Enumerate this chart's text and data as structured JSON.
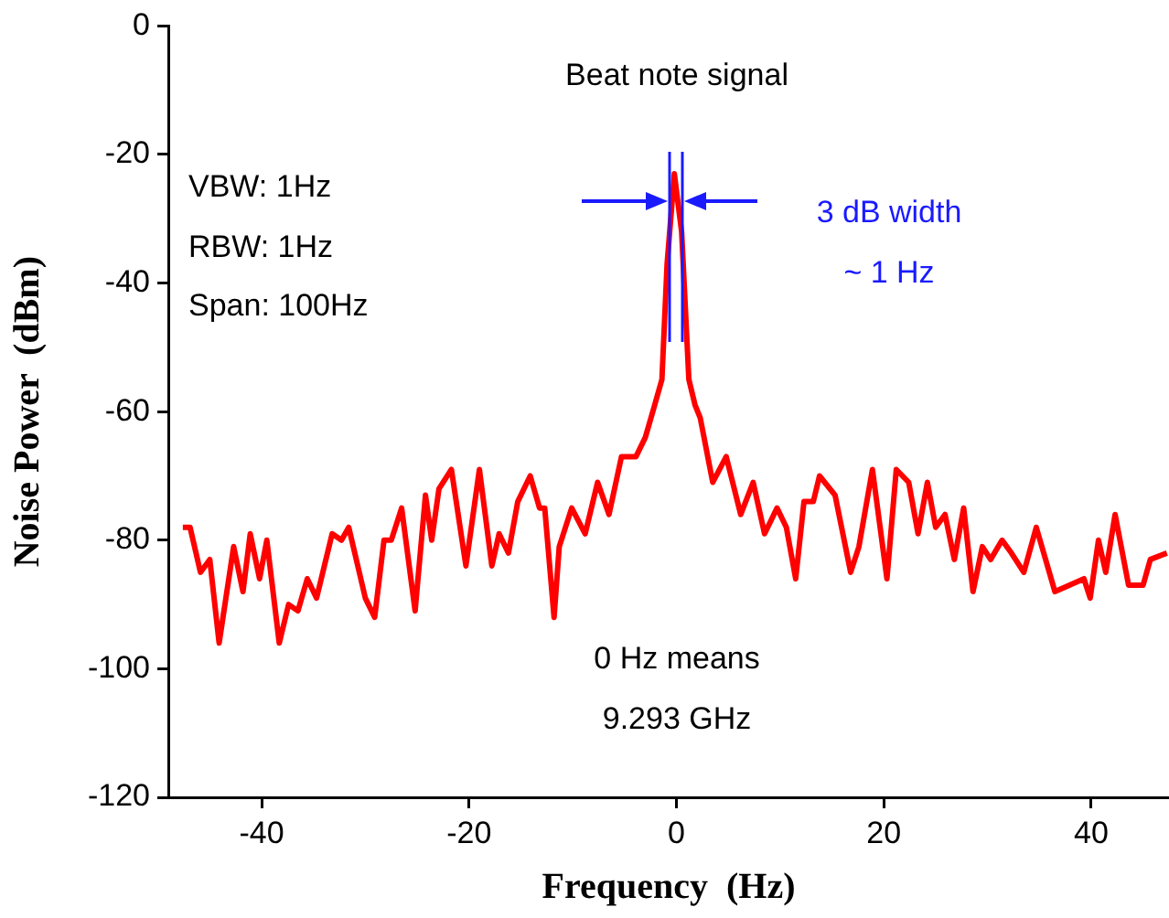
{
  "chart_data": {
    "type": "line",
    "xlabel": "Frequency  (Hz)",
    "ylabel": "Noise Power  (dBm)",
    "annotations": [
      "Beat note signal",
      "VBW: 1Hz",
      "RBW: 1Hz",
      "Span: 100Hz",
      "3 dB width\n~ 1 Hz",
      "0 Hz means\n9.293 GHz"
    ],
    "xlim": [
      -49,
      47.5
    ],
    "xticks": [
      -40,
      -20,
      0,
      20,
      40
    ],
    "ylim": [
      -120,
      0
    ],
    "yticks": [
      0,
      -20,
      -40,
      -60,
      -80,
      -100,
      -120
    ],
    "grid": false,
    "legend": false,
    "marker": "none",
    "line_style": "solid",
    "series": [
      {
        "color": "#ff0000",
        "x": [
          -47.6,
          -46.9,
          -45.9,
          -45.0,
          -44.1,
          -42.7,
          -41.8,
          -41.1,
          -40.2,
          -39.5,
          -38.3,
          -37.4,
          -36.5,
          -35.6,
          -34.7,
          -33.2,
          -32.3,
          -31.6,
          -30.0,
          -29.1,
          -28.2,
          -27.5,
          -26.5,
          -25.2,
          -24.2,
          -23.6,
          -22.9,
          -21.7,
          -20.3,
          -19.0,
          -17.8,
          -17.1,
          -16.2,
          -15.3,
          -14.1,
          -13.2,
          -12.7,
          -11.8,
          -11.3,
          -10.1,
          -8.8,
          -7.6,
          -6.5,
          -5.3,
          -3.9,
          -3.0,
          -2.1,
          -1.4,
          -0.9,
          -0.2,
          0.5,
          1.2,
          1.8,
          2.3,
          3.5,
          4.8,
          6.2,
          7.4,
          8.5,
          9.7,
          10.6,
          11.5,
          12.3,
          13.2,
          13.8,
          15.3,
          16.8,
          17.6,
          18.9,
          20.3,
          21.2,
          22.4,
          23.3,
          24.2,
          25.0,
          25.9,
          26.8,
          27.7,
          28.6,
          29.5,
          30.3,
          31.4,
          32.3,
          33.5,
          34.7,
          36.5,
          39.3,
          39.9,
          40.7,
          41.4,
          42.3,
          43.6,
          45.0,
          45.7,
          47.3
        ],
        "values": [
          -78,
          -78,
          -85,
          -83,
          -96,
          -81,
          -88,
          -79,
          -86,
          -80,
          -96,
          -90,
          -91,
          -86,
          -89,
          -79,
          -80,
          -78,
          -89,
          -92,
          -80,
          -80,
          -75,
          -91,
          -73,
          -80,
          -72,
          -69,
          -84,
          -69,
          -84,
          -79,
          -82,
          -74,
          -70,
          -75,
          -75,
          -92,
          -81,
          -75,
          -79,
          -71,
          -76,
          -67,
          -67,
          -64,
          -59,
          -55,
          -37,
          -23,
          -32,
          -55,
          -59,
          -61,
          -71,
          -67,
          -76,
          -71,
          -79,
          -75,
          -78,
          -86,
          -74,
          -74,
          -70,
          -73,
          -85,
          -81,
          -69,
          -86,
          -69,
          -71,
          -79,
          -71,
          -78,
          -76,
          -83,
          -75,
          -88,
          -81,
          -83,
          -80,
          -82,
          -85,
          -78,
          -88,
          -86,
          -89,
          -80,
          -85,
          -76,
          -87,
          -87,
          -83,
          -82
        ]
      }
    ]
  }
}
